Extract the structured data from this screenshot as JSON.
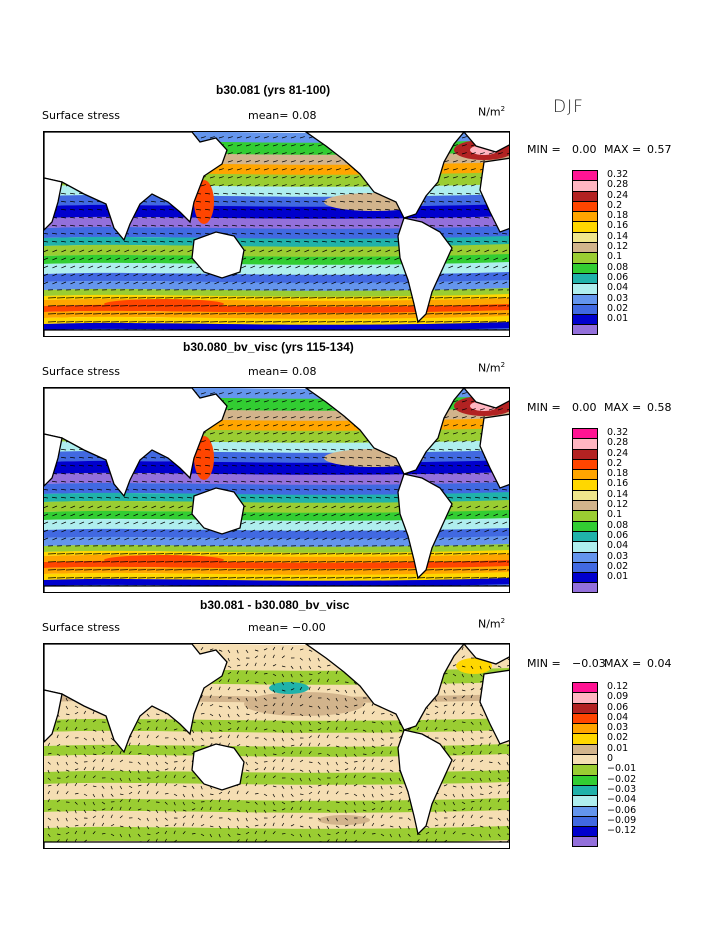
{
  "header": {
    "season": "DJF"
  },
  "panels": [
    {
      "title": "b30.081 (yrs 81-100)",
      "variable": "Surface stress",
      "mean_label": "mean=",
      "mean_value": "0.08",
      "units": "N/m",
      "units_exp": "2",
      "min_label": "MIN =",
      "min_value": "0.00",
      "max_label": "MAX =",
      "max_value": "0.57",
      "legend": [
        "0.32",
        "0.28",
        "0.24",
        "0.2",
        "0.18",
        "0.16",
        "0.14",
        "0.12",
        "0.1",
        "0.08",
        "0.06",
        "0.04",
        "0.03",
        "0.02",
        "0.01"
      ],
      "legend_colors": [
        "#ff1493",
        "#ffb6c1",
        "#b22222",
        "#ff4500",
        "#ffa500",
        "#ffd700",
        "#f0e68c",
        "#d2b48c",
        "#9acd32",
        "#32cd32",
        "#20b2aa",
        "#afeeee",
        "#6495ed",
        "#4169e1",
        "#0000cd",
        "#9370db"
      ]
    },
    {
      "title": "b30.080_bv_visc (yrs 115-134)",
      "variable": "Surface stress",
      "mean_label": "mean=",
      "mean_value": "0.08",
      "units": "N/m",
      "units_exp": "2",
      "min_label": "MIN =",
      "min_value": "0.00",
      "max_label": "MAX =",
      "max_value": "0.58",
      "legend": [
        "0.32",
        "0.28",
        "0.24",
        "0.2",
        "0.18",
        "0.16",
        "0.14",
        "0.12",
        "0.1",
        "0.08",
        "0.06",
        "0.04",
        "0.03",
        "0.02",
        "0.01"
      ],
      "legend_colors": [
        "#ff1493",
        "#ffb6c1",
        "#b22222",
        "#ff4500",
        "#ffa500",
        "#ffd700",
        "#f0e68c",
        "#d2b48c",
        "#9acd32",
        "#32cd32",
        "#20b2aa",
        "#afeeee",
        "#6495ed",
        "#4169e1",
        "#0000cd",
        "#9370db"
      ]
    },
    {
      "title": "b30.081 - b30.080_bv_visc",
      "variable": "Surface stress",
      "mean_label": "mean=",
      "mean_value": "−0.00",
      "units": "N/m",
      "units_exp": "2",
      "min_label": "MIN =",
      "min_value": "−0.03",
      "max_label": "MAX =",
      "max_value": "0.04",
      "legend": [
        "0.12",
        "0.09",
        "0.06",
        "0.04",
        "0.03",
        "0.02",
        "0.01",
        "0",
        "−0.01",
        "−0.02",
        "−0.03",
        "−0.04",
        "−0.06",
        "−0.09",
        "−0.12"
      ],
      "legend_colors": [
        "#ff1493",
        "#ffb6c1",
        "#b22222",
        "#ff4500",
        "#ffa500",
        "#ffd700",
        "#d2b48c",
        "#f5deb3",
        "#9acd32",
        "#32cd32",
        "#20b2aa",
        "#afeeee",
        "#6495ed",
        "#4169e1",
        "#0000cd",
        "#9370db"
      ]
    }
  ]
}
